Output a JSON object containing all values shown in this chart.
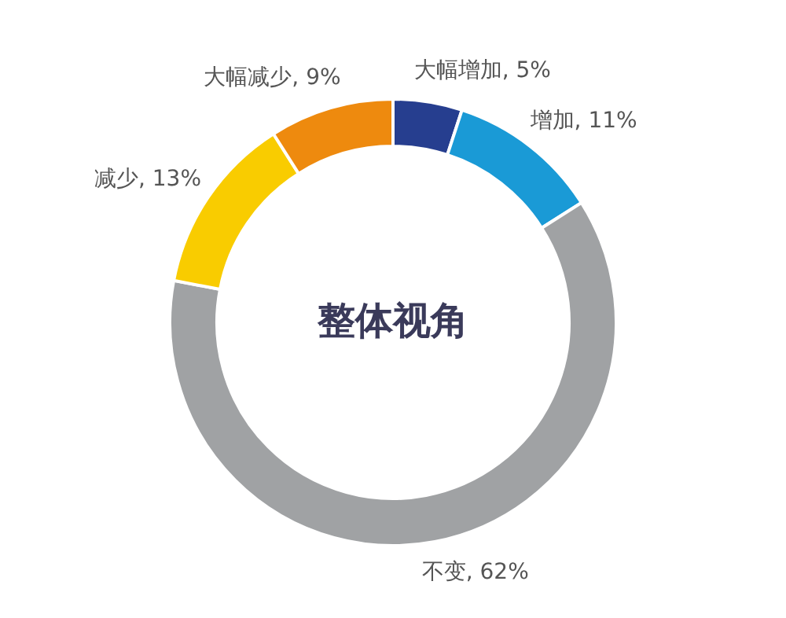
{
  "chart_data": {
    "type": "donut",
    "title": "整体视角",
    "categories": [
      "大幅增加",
      "增加",
      "不变",
      "减少",
      "大幅减少"
    ],
    "values": [
      5,
      11,
      62,
      13,
      9
    ],
    "value_labels": [
      "5%",
      "11%",
      "62%",
      "13%",
      "9%"
    ],
    "colors": [
      "#263e8f",
      "#1a9ad6",
      "#a0a2a4",
      "#f9cc00",
      "#ee8a0e"
    ],
    "legend": false
  }
}
